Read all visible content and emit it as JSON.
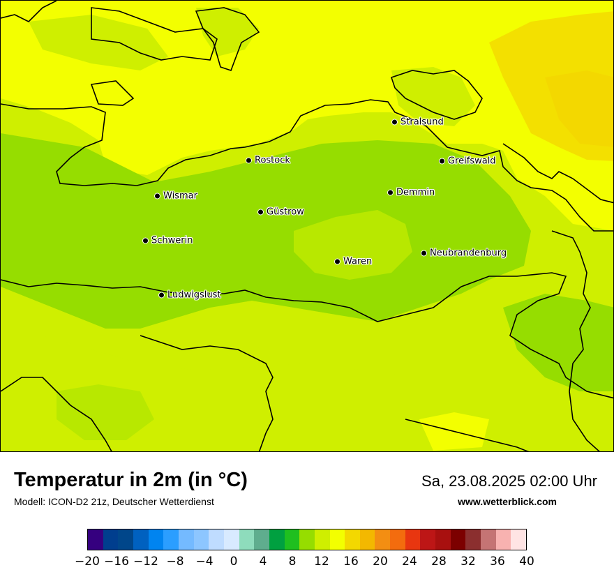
{
  "map": {
    "title": "Temperatur in 2m (in °C)",
    "model": "Modell: ICON-D2 21z, Deutscher Wetterdienst",
    "datetime": "Sa, 23.08.2025 02:00 Uhr",
    "website": "www.wetterblick.com",
    "cities": [
      {
        "name": "Stralsund"
      },
      {
        "name": "Rostock"
      },
      {
        "name": "Greifswald"
      },
      {
        "name": "Wismar"
      },
      {
        "name": "Demmin"
      },
      {
        "name": "Güstrow"
      },
      {
        "name": "Schwerin"
      },
      {
        "name": "Neubrandenburg"
      },
      {
        "name": "Waren"
      },
      {
        "name": "Ludwigslust"
      }
    ],
    "legend": {
      "ticks": [
        "−20",
        "−16",
        "−12",
        "−8",
        "−4",
        "0",
        "4",
        "8",
        "12",
        "16",
        "20",
        "24",
        "28",
        "32",
        "36",
        "40"
      ],
      "colors": [
        "#35007f",
        "#003e8e",
        "#00468a",
        "#0061c0",
        "#0084f0",
        "#2b9eff",
        "#74baff",
        "#8dc6ff",
        "#bfdcff",
        "#d8eaff",
        "#8edcbc",
        "#5fad8e",
        "#00a040",
        "#1fbf1f",
        "#96dd00",
        "#cfef00",
        "#f3ff00",
        "#f3d800",
        "#f3b800",
        "#f38e12",
        "#f36c0e",
        "#e83610",
        "#bd1616",
        "#a8100f",
        "#7c0000",
        "#8b2f2f",
        "#c57474",
        "#f8b2b0",
        "#ffe4e4"
      ]
    }
  }
}
